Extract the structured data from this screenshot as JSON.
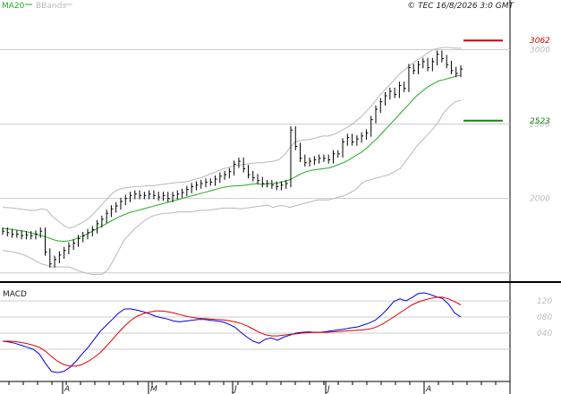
{
  "header": {
    "ma_label": "MA20",
    "bb_label": "BBands",
    "copyright": "© TEC 16/8/2026 3:0 GMT"
  },
  "colors": {
    "price": "#000000",
    "ma": "#22aa22",
    "bbands": "#b8b8b8",
    "macd": "#0000dd",
    "signal": "#dd0000",
    "resistance": "#cc0000",
    "support": "#118811",
    "grid": "#cccccc"
  },
  "chart_data": [
    {
      "type": "line",
      "title": "",
      "y_ticks": [
        "3000",
        "2500",
        "2000"
      ],
      "ylim": [
        1450,
        3250
      ],
      "grid": true,
      "x_month_labels": [
        "A",
        "M",
        "J",
        "J",
        "A"
      ],
      "levels": [
        {
          "label": "3062",
          "value": 3062,
          "color": "#cc0000"
        },
        {
          "label": "2523",
          "value": 2523,
          "color": "#118811"
        }
      ],
      "series": [
        {
          "name": "MA20",
          "values": [
            1800,
            1795,
            1790,
            1785,
            1780,
            1770,
            1760,
            1750,
            1740,
            1725,
            1715,
            1712,
            1715,
            1725,
            1740,
            1755,
            1775,
            1795,
            1815,
            1835,
            1855,
            1875,
            1890,
            1905,
            1915,
            1925,
            1935,
            1945,
            1955,
            1965,
            1975,
            1985,
            1995,
            2005,
            2015,
            2025,
            2035,
            2045,
            2055,
            2065,
            2075,
            2080,
            2085,
            2085,
            2090,
            2095,
            2100,
            2095,
            2100,
            2100,
            2105,
            2115,
            2125,
            2145,
            2165,
            2180,
            2190,
            2195,
            2200,
            2205,
            2215,
            2230,
            2245,
            2265,
            2290,
            2310,
            2340,
            2375,
            2410,
            2450,
            2490,
            2530,
            2570,
            2610,
            2650,
            2690,
            2720,
            2750,
            2770,
            2790,
            2800,
            2810,
            2820,
            2830
          ]
        },
        {
          "name": "BBands",
          "values": [
            1940,
            1938,
            1935,
            1930,
            1925,
            1920,
            1920,
            1930,
            1925,
            1880,
            1850,
            1820,
            1800,
            1810,
            1830,
            1850,
            1880,
            1920,
            1960,
            2000,
            2040,
            2060,
            2070,
            2075,
            2080,
            2080,
            2085,
            2085,
            2090,
            2095,
            2100,
            2105,
            2110,
            2110,
            2120,
            2130,
            2140,
            2155,
            2170,
            2185,
            2200,
            2210,
            2220,
            2225,
            2230,
            2235,
            2240,
            2240,
            2245,
            2250,
            2260,
            2290,
            2340,
            2380,
            2390,
            2395,
            2400,
            2410,
            2420,
            2420,
            2430,
            2450,
            2470,
            2490,
            2520,
            2550,
            2590,
            2630,
            2680,
            2720,
            2760,
            2800,
            2840,
            2870,
            2900,
            2930,
            2950,
            2980,
            3000,
            3010,
            3015,
            3015,
            3010,
            3010
          ]
        },
        {
          "name": "BBands",
          "values": [
            1650,
            1645,
            1640,
            1630,
            1620,
            1600,
            1580,
            1560,
            1550,
            1540,
            1540,
            1540,
            1540,
            1525,
            1510,
            1500,
            1490,
            1490,
            1490,
            1520,
            1580,
            1650,
            1720,
            1760,
            1800,
            1830,
            1860,
            1880,
            1890,
            1900,
            1900,
            1905,
            1910,
            1910,
            1910,
            1915,
            1920,
            1920,
            1925,
            1930,
            1935,
            1935,
            1935,
            1930,
            1935,
            1940,
            1945,
            1950,
            1955,
            1940,
            1950,
            1950,
            1940,
            1950,
            1960,
            1970,
            1980,
            1990,
            1990,
            1990,
            2000,
            2010,
            2020,
            2040,
            2060,
            2100,
            2120,
            2130,
            2140,
            2150,
            2160,
            2180,
            2200,
            2250,
            2300,
            2350,
            2390,
            2430,
            2470,
            2520,
            2580,
            2620,
            2650,
            2660
          ]
        },
        {
          "name": "Price",
          "values": [
            1780,
            1770,
            1760,
            1760,
            1750,
            1755,
            1750,
            1760,
            1780,
            1640,
            1560,
            1590,
            1620,
            1650,
            1680,
            1700,
            1730,
            1750,
            1770,
            1790,
            1830,
            1860,
            1900,
            1930,
            1950,
            1980,
            2000,
            2020,
            2030,
            2020,
            2020,
            2030,
            2020,
            2010,
            2020,
            2000,
            2020,
            2030,
            2040,
            2060,
            2080,
            2090,
            2100,
            2110,
            2110,
            2130,
            2150,
            2160,
            2180,
            2230,
            2250,
            2200,
            2160,
            2140,
            2120,
            2100,
            2100,
            2090,
            2080,
            2090,
            2100,
            2460,
            2350,
            2270,
            2240,
            2250,
            2260,
            2270,
            2270,
            2260,
            2300,
            2300,
            2380,
            2410,
            2380,
            2400,
            2420,
            2440,
            2530,
            2600,
            2650,
            2690,
            2720,
            2700,
            2760,
            2740,
            2880,
            2860,
            2900,
            2920,
            2880,
            2920,
            2970,
            2940,
            2900,
            2860,
            2840,
            2870
          ]
        }
      ]
    },
    {
      "type": "line",
      "title": "MACD",
      "y_ticks": [
        "120",
        "080",
        "040"
      ],
      "ylim": [
        -80,
        160
      ],
      "grid": true,
      "series": [
        {
          "name": "MACD",
          "values": [
            20,
            18,
            15,
            10,
            5,
            0,
            -12,
            -35,
            -55,
            -58,
            -55,
            -45,
            -30,
            -12,
            5,
            25,
            45,
            60,
            75,
            90,
            100,
            100,
            97,
            93,
            88,
            82,
            78,
            75,
            70,
            68,
            70,
            72,
            74,
            74,
            72,
            70,
            68,
            62,
            55,
            42,
            30,
            20,
            15,
            25,
            28,
            22,
            30,
            35,
            40,
            42,
            43,
            42,
            42,
            44,
            46,
            48,
            50,
            53,
            55,
            60,
            65,
            72,
            85,
            100,
            118,
            125,
            120,
            128,
            138,
            140,
            136,
            130,
            126,
            112,
            90,
            80
          ]
        },
        {
          "name": "Signal",
          "values": [
            20,
            20,
            19,
            17,
            14,
            10,
            5,
            -5,
            -18,
            -30,
            -38,
            -42,
            -42,
            -38,
            -30,
            -20,
            -8,
            8,
            25,
            42,
            58,
            72,
            82,
            88,
            92,
            95,
            95,
            93,
            90,
            86,
            82,
            79,
            77,
            76,
            75,
            74,
            73,
            71,
            68,
            64,
            58,
            50,
            42,
            36,
            33,
            33,
            35,
            37,
            38,
            40,
            41,
            42,
            42,
            42,
            43,
            44,
            45,
            46,
            47,
            48,
            50,
            54,
            61,
            70,
            80,
            90,
            100,
            110,
            117,
            122,
            126,
            129,
            129,
            125,
            118,
            110
          ]
        }
      ]
    }
  ]
}
